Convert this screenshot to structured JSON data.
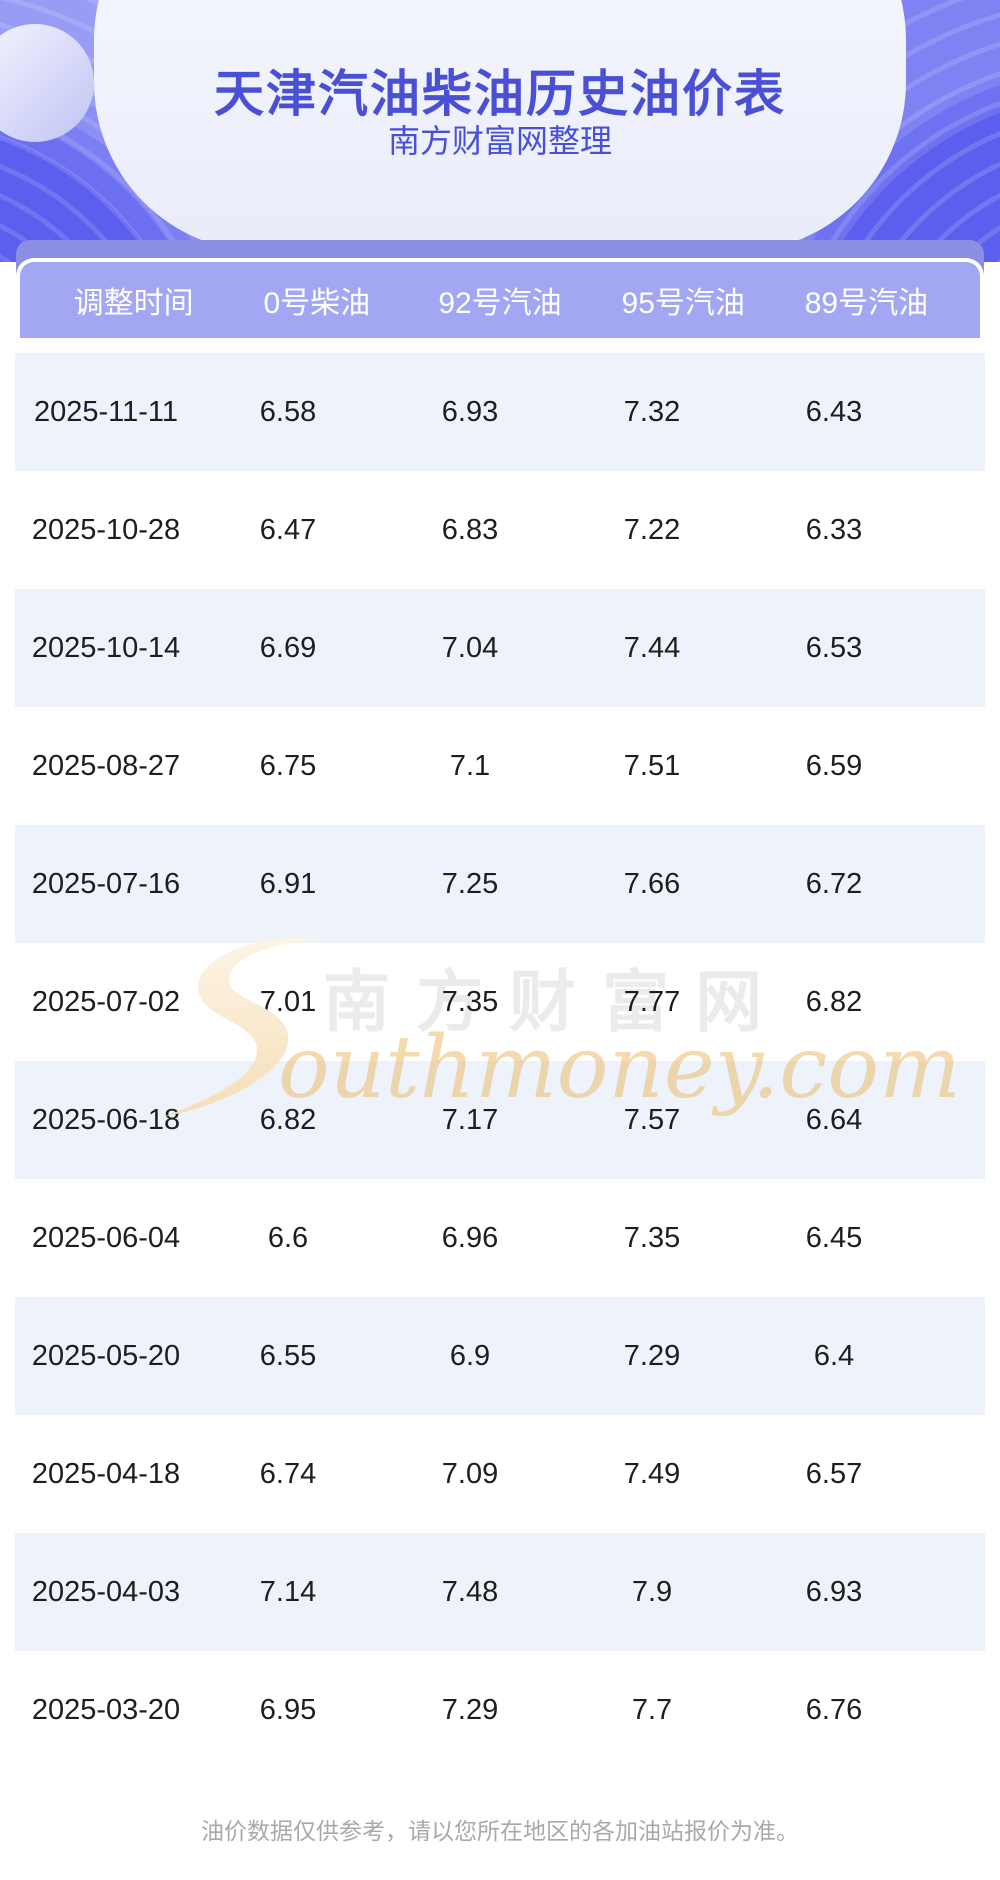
{
  "header": {
    "title": "天津汽油柴油历史油价表",
    "subtitle": "南方财富网整理"
  },
  "chart_data": {
    "type": "table",
    "title": "天津汽油柴油历史油价表",
    "columns": [
      "调整时间",
      "0号柴油",
      "92号汽油",
      "95号汽油",
      "89号汽油"
    ],
    "rows": [
      [
        "2025-11-11",
        "6.58",
        "6.93",
        "7.32",
        "6.43"
      ],
      [
        "2025-10-28",
        "6.47",
        "6.83",
        "7.22",
        "6.33"
      ],
      [
        "2025-10-14",
        "6.69",
        "7.04",
        "7.44",
        "6.53"
      ],
      [
        "2025-08-27",
        "6.75",
        "7.1",
        "7.51",
        "6.59"
      ],
      [
        "2025-07-16",
        "6.91",
        "7.25",
        "7.66",
        "6.72"
      ],
      [
        "2025-07-02",
        "7.01",
        "7.35",
        "7.77",
        "6.82"
      ],
      [
        "2025-06-18",
        "6.82",
        "7.17",
        "7.57",
        "6.64"
      ],
      [
        "2025-06-04",
        "6.6",
        "6.96",
        "7.35",
        "6.45"
      ],
      [
        "2025-05-20",
        "6.55",
        "6.9",
        "7.29",
        "6.4"
      ],
      [
        "2025-04-18",
        "6.74",
        "7.09",
        "7.49",
        "6.57"
      ],
      [
        "2025-04-03",
        "7.14",
        "7.48",
        "7.9",
        "6.93"
      ],
      [
        "2025-03-20",
        "6.95",
        "7.29",
        "7.7",
        "6.76"
      ]
    ]
  },
  "watermark": {
    "cjk": "南方财富网",
    "latin": "outhmoney.com"
  },
  "footer": {
    "note": "油价数据仅供参考，请以您所在地区的各加油站报价为准。"
  },
  "colors": {
    "hero_purple": "#5b5fee",
    "header_bar": "#a3a6f2",
    "header_bar_back": "#8b8ee3",
    "row_alt": "#edf2fb",
    "title_text": "#4a50d6",
    "watermark_gold": "#f5ddb0",
    "footer_text": "#a9a9a9"
  }
}
